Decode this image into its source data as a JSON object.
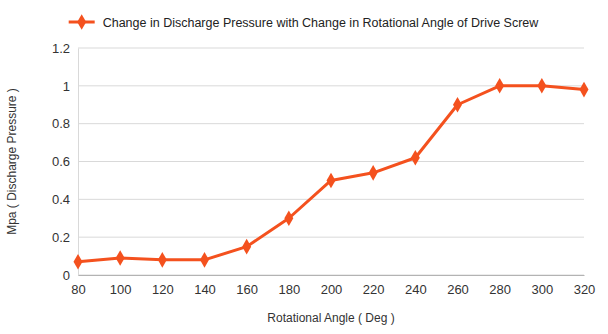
{
  "chart_data": {
    "type": "line",
    "x_label": "Rotational Angle ( Deg )",
    "y_label": "Mpa ( Discharge Pressure )",
    "x": [
      80,
      100,
      120,
      140,
      160,
      180,
      200,
      220,
      240,
      260,
      280,
      300,
      320
    ],
    "series": [
      {
        "name": "Change in Discharge Pressure with Change in Rotational Angle of Drive Screw",
        "color": "#f4511e",
        "marker": "diamond",
        "line_style": "solid",
        "values": [
          0.07,
          0.09,
          0.08,
          0.08,
          0.15,
          0.3,
          0.5,
          0.54,
          0.62,
          0.9,
          1,
          1,
          0.98
        ]
      }
    ],
    "xlim": [
      80,
      320
    ],
    "xticks": [
      80,
      100,
      120,
      140,
      160,
      180,
      200,
      220,
      240,
      260,
      280,
      300,
      320
    ],
    "ylim": [
      0,
      1.2
    ],
    "yticks": [
      0,
      0.2,
      0.4,
      0.6,
      0.8,
      1,
      1.2
    ],
    "grid": true,
    "legend": "top"
  }
}
